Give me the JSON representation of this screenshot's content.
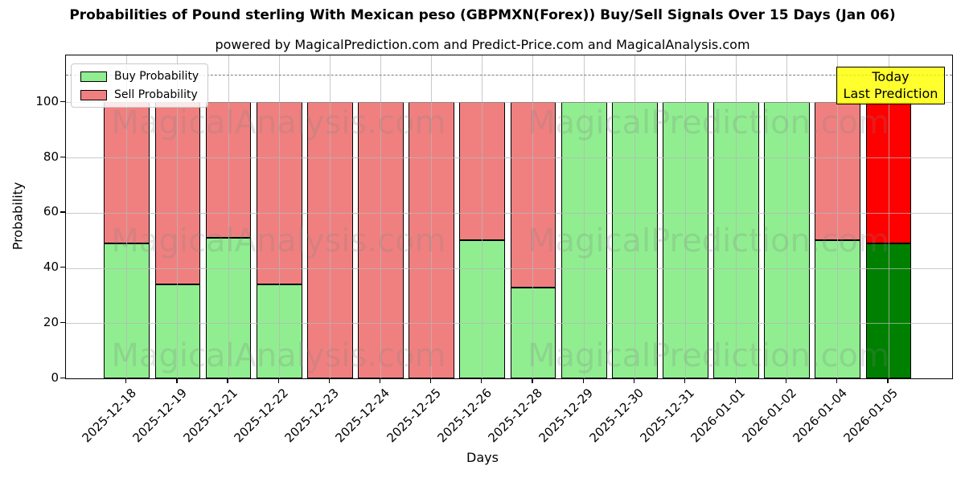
{
  "title": "Probabilities of Pound sterling With Mexican peso (GBPMXN(Forex)) Buy/Sell Signals Over 15 Days (Jan 06)",
  "subtitle": "powered by MagicalPrediction.com and Predict-Price.com and MagicalAnalysis.com",
  "axes": {
    "x_label": "Days",
    "y_label": "Probability",
    "y_ticks": [
      0,
      20,
      40,
      60,
      80,
      100
    ],
    "y_max": 117,
    "dashed_line_y": 110
  },
  "legend": {
    "items": [
      {
        "label": "Buy Probability",
        "color": "#90ee90"
      },
      {
        "label": "Sell Probability",
        "color": "#f08080"
      }
    ]
  },
  "annotation": {
    "line1": "Today",
    "line2": "Last Prediction",
    "bg_color": "#ffff00"
  },
  "watermarks": [
    "MagicalAnalysis.com",
    "MagicalPrediction.com"
  ],
  "chart_data": {
    "type": "bar",
    "stacked": true,
    "title": "Probabilities of Pound sterling With Mexican peso (GBPMXN(Forex)) Buy/Sell Signals Over 15 Days (Jan 06)",
    "xlabel": "Days",
    "ylabel": "Probability",
    "ylim": [
      0,
      117
    ],
    "dashed_reference_line": 110,
    "grid": "on",
    "legend_position": "upper left",
    "categories": [
      "2025-12-18",
      "2025-12-19",
      "2025-12-21",
      "2025-12-22",
      "2025-12-23",
      "2025-12-24",
      "2025-12-25",
      "2025-12-26",
      "2025-12-28",
      "2025-12-29",
      "2025-12-30",
      "2025-12-31",
      "2026-01-01",
      "2026-01-02",
      "2026-01-04",
      "2026-01-05"
    ],
    "series": [
      {
        "name": "Buy Probability",
        "color": "#90ee90",
        "values": [
          49,
          34,
          51,
          34,
          0,
          0,
          0,
          50,
          33,
          100,
          100,
          100,
          100,
          100,
          50,
          49
        ]
      },
      {
        "name": "Sell Probability",
        "color": "#f08080",
        "values": [
          51,
          66,
          49,
          66,
          100,
          100,
          100,
          50,
          67,
          0,
          0,
          0,
          0,
          0,
          50,
          51
        ]
      }
    ],
    "highlight_last_bar": {
      "index": 15,
      "buy_color": "#008000",
      "sell_color": "#ff0000",
      "label": "Today Last Prediction"
    }
  }
}
